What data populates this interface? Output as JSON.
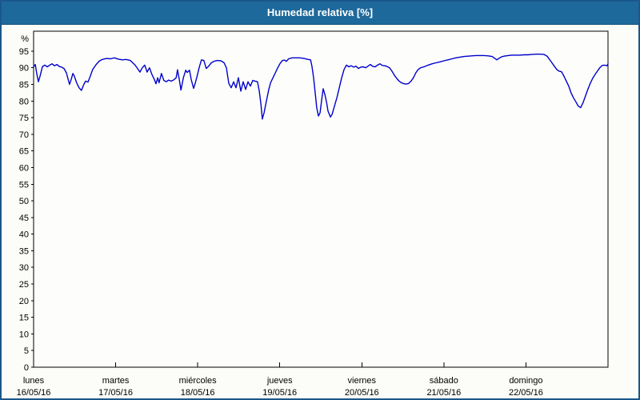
{
  "window": {
    "title": "Humedad relativa [%]"
  },
  "colors": {
    "titlebar": "#1e699b",
    "frame": "#1a578a",
    "background": "#fcfdf8",
    "plot_background": "#fdfefb",
    "line": "#0000cc",
    "grid": "#000000",
    "title_text": "#ffffff",
    "label_text": "#000000"
  },
  "chart_data": {
    "type": "line",
    "title": "Humedad relativa [%]",
    "ylabel": "%",
    "xlabel": "",
    "ylim": [
      0,
      101
    ],
    "y_ticks": [
      0,
      5,
      10,
      15,
      20,
      25,
      30,
      35,
      40,
      45,
      50,
      55,
      60,
      65,
      70,
      75,
      80,
      85,
      90,
      95
    ],
    "y_unit_label": "%",
    "grid": "dashed",
    "legend": "none",
    "x_range_hours": [
      0,
      168
    ],
    "hours_per_day": 24,
    "x_days": [
      {
        "name": "lunes",
        "date": "16/05/16"
      },
      {
        "name": "martes",
        "date": "17/05/16"
      },
      {
        "name": "miércoles",
        "date": "18/05/16"
      },
      {
        "name": "jueves",
        "date": "19/05/16"
      },
      {
        "name": "viernes",
        "date": "20/05/16"
      },
      {
        "name": "sábado",
        "date": "21/05/16"
      },
      {
        "name": "domingo",
        "date": "22/05/16"
      }
    ],
    "series": [
      {
        "name": "Humedad relativa",
        "unit": "%",
        "color": "#0000cc",
        "points": [
          [
            0,
            90.3
          ],
          [
            0.5,
            91
          ],
          [
            0.9,
            88.5
          ],
          [
            1.4,
            85.8
          ],
          [
            1.9,
            87.5
          ],
          [
            2.6,
            90.4
          ],
          [
            3.3,
            90.8
          ],
          [
            4,
            90.3
          ],
          [
            4.7,
            90.8
          ],
          [
            5.4,
            91.2
          ],
          [
            6.1,
            90.6
          ],
          [
            6.8,
            91
          ],
          [
            7.5,
            90.4
          ],
          [
            8.2,
            90.2
          ],
          [
            8.9,
            89.8
          ],
          [
            9.6,
            88.5
          ],
          [
            10.1,
            86.5
          ],
          [
            10.5,
            85
          ],
          [
            11,
            86.5
          ],
          [
            11.5,
            88.3
          ],
          [
            11.9,
            87.5
          ],
          [
            12.6,
            85.5
          ],
          [
            13.3,
            84
          ],
          [
            14,
            83.2
          ],
          [
            14.7,
            85
          ],
          [
            15.2,
            86
          ],
          [
            15.9,
            85.7
          ],
          [
            16.6,
            87.5
          ],
          [
            17.3,
            89.5
          ],
          [
            18.3,
            91
          ],
          [
            19.2,
            92
          ],
          [
            20.1,
            92.5
          ],
          [
            21.3,
            92.8
          ],
          [
            22.5,
            92.7
          ],
          [
            23.6,
            93
          ],
          [
            24.8,
            92.6
          ],
          [
            26,
            92.4
          ],
          [
            27.1,
            92.5
          ],
          [
            28.3,
            92.2
          ],
          [
            29,
            91.5
          ],
          [
            29.7,
            90.8
          ],
          [
            30.4,
            89.8
          ],
          [
            31.1,
            88.7
          ],
          [
            31.8,
            90
          ],
          [
            32.5,
            90.8
          ],
          [
            33.2,
            88.7
          ],
          [
            33.9,
            90
          ],
          [
            34.6,
            88
          ],
          [
            35.3,
            86.5
          ],
          [
            35.8,
            85.2
          ],
          [
            36.3,
            87
          ],
          [
            36.7,
            85.5
          ],
          [
            37.4,
            88.3
          ],
          [
            38.1,
            86.2
          ],
          [
            38.8,
            85.8
          ],
          [
            39.5,
            86.3
          ],
          [
            40.2,
            86
          ],
          [
            40.9,
            86.3
          ],
          [
            41.7,
            87
          ],
          [
            42.1,
            89.4
          ],
          [
            42.6,
            86.5
          ],
          [
            43.1,
            83.3
          ],
          [
            43.8,
            87
          ],
          [
            44.5,
            89.3
          ],
          [
            44.9,
            88.6
          ],
          [
            45.6,
            89.3
          ],
          [
            46.1,
            86.5
          ],
          [
            46.8,
            83.8
          ],
          [
            47.3,
            85.5
          ],
          [
            47.7,
            87
          ],
          [
            48.4,
            90
          ],
          [
            49.1,
            92.4
          ],
          [
            49.8,
            92.2
          ],
          [
            50.5,
            89.8
          ],
          [
            51.2,
            90.5
          ],
          [
            52,
            91.5
          ],
          [
            52.9,
            92
          ],
          [
            53.8,
            92.2
          ],
          [
            54.8,
            92.1
          ],
          [
            55.7,
            91.5
          ],
          [
            56.4,
            90
          ],
          [
            57.1,
            85.3
          ],
          [
            57.8,
            84
          ],
          [
            58.5,
            85.8
          ],
          [
            59.2,
            84
          ],
          [
            59.9,
            87
          ],
          [
            60.6,
            83
          ],
          [
            61.3,
            85.8
          ],
          [
            62,
            83.5
          ],
          [
            62.7,
            85.8
          ],
          [
            63.4,
            84.5
          ],
          [
            64.1,
            86.2
          ],
          [
            64.8,
            86
          ],
          [
            65.5,
            85.8
          ],
          [
            66,
            83
          ],
          [
            66.5,
            79
          ],
          [
            66.9,
            74.6
          ],
          [
            67.4,
            76.5
          ],
          [
            68.1,
            80
          ],
          [
            68.8,
            83.5
          ],
          [
            69.3,
            85.5
          ],
          [
            70,
            87
          ],
          [
            70.7,
            88.5
          ],
          [
            71.4,
            90
          ],
          [
            72.1,
            91.3
          ],
          [
            72.8,
            92.2
          ],
          [
            73.5,
            92.3
          ],
          [
            73.9,
            91.9
          ],
          [
            74.6,
            92.7
          ],
          [
            75.6,
            93
          ],
          [
            76.8,
            93
          ],
          [
            77.9,
            93
          ],
          [
            79.1,
            92.8
          ],
          [
            80.3,
            92.5
          ],
          [
            81,
            92.4
          ],
          [
            81.4,
            90.5
          ],
          [
            81.9,
            87
          ],
          [
            82.4,
            82
          ],
          [
            82.8,
            78
          ],
          [
            83.3,
            75.5
          ],
          [
            83.8,
            76.5
          ],
          [
            84.2,
            80
          ],
          [
            84.7,
            83.7
          ],
          [
            85.2,
            82
          ],
          [
            85.7,
            79.5
          ],
          [
            86.1,
            77
          ],
          [
            86.8,
            75.2
          ],
          [
            87.3,
            76
          ],
          [
            88,
            78.5
          ],
          [
            88.7,
            81
          ],
          [
            89.4,
            84
          ],
          [
            90.1,
            87
          ],
          [
            90.8,
            89.5
          ],
          [
            91.5,
            90.8
          ],
          [
            92.2,
            90.3
          ],
          [
            92.9,
            90.6
          ],
          [
            93.6,
            90.2
          ],
          [
            94.3,
            90.5
          ],
          [
            95,
            89.8
          ],
          [
            95.7,
            90.2
          ],
          [
            96.4,
            90.3
          ],
          [
            97.1,
            90
          ],
          [
            97.8,
            90.5
          ],
          [
            98.5,
            91
          ],
          [
            99.2,
            90.4
          ],
          [
            99.9,
            90.3
          ],
          [
            100.6,
            90.8
          ],
          [
            101.3,
            91.2
          ],
          [
            102,
            90.7
          ],
          [
            102.7,
            90.6
          ],
          [
            103.4,
            90.4
          ],
          [
            104.1,
            90
          ],
          [
            104.8,
            89
          ],
          [
            105.5,
            87.8
          ],
          [
            106.2,
            86.8
          ],
          [
            106.9,
            86
          ],
          [
            107.6,
            85.5
          ],
          [
            108.3,
            85.2
          ],
          [
            109,
            85.1
          ],
          [
            109.7,
            85.3
          ],
          [
            110.4,
            86
          ],
          [
            111.1,
            87
          ],
          [
            111.8,
            88.5
          ],
          [
            112.5,
            89.5
          ],
          [
            113.2,
            90
          ],
          [
            114.2,
            90.3
          ],
          [
            115.4,
            90.8
          ],
          [
            116.5,
            91.2
          ],
          [
            117.7,
            91.5
          ],
          [
            118.9,
            91.8
          ],
          [
            120,
            92.1
          ],
          [
            121.2,
            92.4
          ],
          [
            122.4,
            92.7
          ],
          [
            123.5,
            93
          ],
          [
            124.7,
            93.2
          ],
          [
            125.9,
            93.4
          ],
          [
            127.1,
            93.5
          ],
          [
            128.2,
            93.6
          ],
          [
            129.4,
            93.7
          ],
          [
            130.6,
            93.7
          ],
          [
            131.7,
            93.7
          ],
          [
            132.9,
            93.6
          ],
          [
            134.1,
            93.4
          ],
          [
            134.8,
            92.9
          ],
          [
            135.5,
            92.4
          ],
          [
            136.2,
            92.9
          ],
          [
            136.9,
            93.3
          ],
          [
            137.6,
            93.5
          ],
          [
            138.8,
            93.7
          ],
          [
            139.9,
            93.8
          ],
          [
            141.1,
            93.8
          ],
          [
            142.3,
            93.8
          ],
          [
            143.4,
            93.9
          ],
          [
            144.6,
            93.9
          ],
          [
            145.8,
            94
          ],
          [
            146.9,
            94.1
          ],
          [
            148.1,
            94.1
          ],
          [
            149.3,
            94
          ],
          [
            150.2,
            93.5
          ],
          [
            150.9,
            92.5
          ],
          [
            151.6,
            91.5
          ],
          [
            152.3,
            90.5
          ],
          [
            153,
            89.5
          ],
          [
            153.7,
            89
          ],
          [
            154.4,
            88.8
          ],
          [
            155.1,
            87.5
          ],
          [
            155.8,
            86
          ],
          [
            156.5,
            84.5
          ],
          [
            157.2,
            82.5
          ],
          [
            157.9,
            81
          ],
          [
            158.6,
            79.8
          ],
          [
            159.3,
            78.5
          ],
          [
            160,
            78
          ],
          [
            160.7,
            79.5
          ],
          [
            161.4,
            81.5
          ],
          [
            162.1,
            83.5
          ],
          [
            162.8,
            85.3
          ],
          [
            163.5,
            86.8
          ],
          [
            164.2,
            88
          ],
          [
            164.9,
            89
          ],
          [
            165.6,
            90
          ],
          [
            166.3,
            90.7
          ],
          [
            167,
            90.8
          ],
          [
            167.7,
            90.6
          ],
          [
            168,
            91.2
          ]
        ]
      }
    ]
  }
}
